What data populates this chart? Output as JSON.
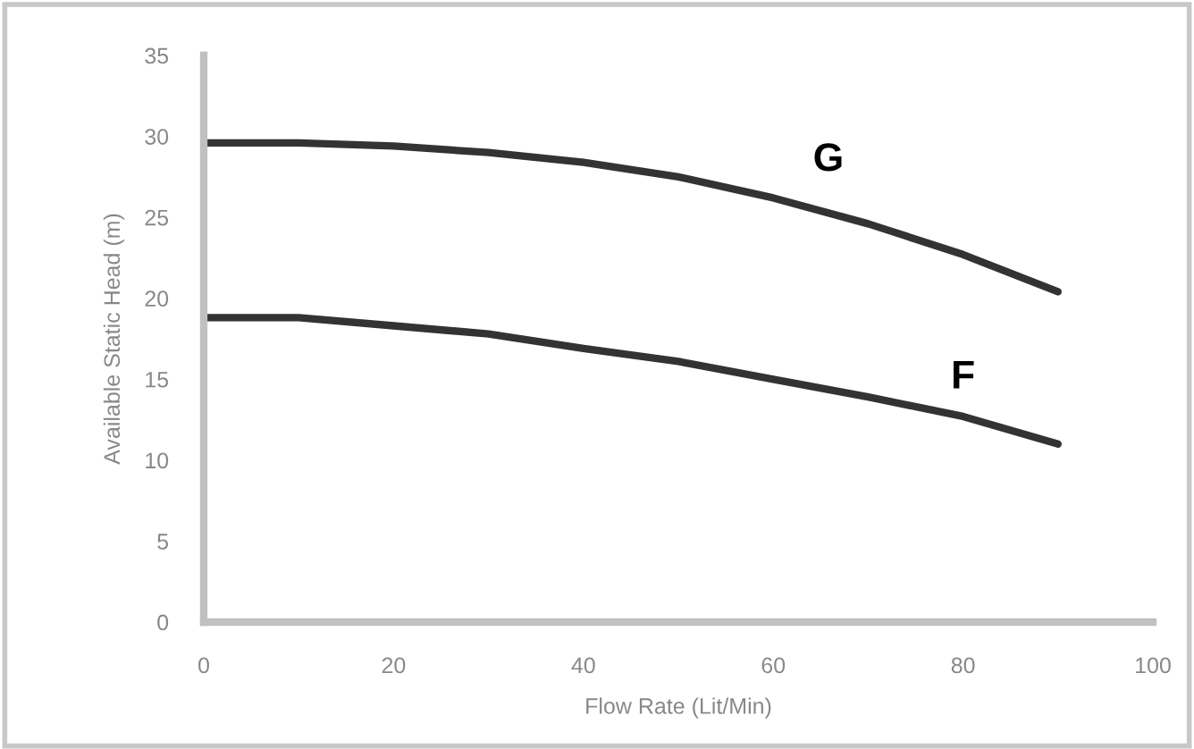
{
  "chart_data": {
    "type": "line",
    "xlabel": "Flow Rate (Lit/Min)",
    "ylabel": "Available Static Head (m)",
    "x": [
      0,
      10,
      20,
      30,
      40,
      50,
      60,
      70,
      80,
      90
    ],
    "series": [
      {
        "name": "G",
        "color": "#333333",
        "values": [
          29.6,
          29.6,
          29.4,
          29.0,
          28.4,
          27.5,
          26.2,
          24.6,
          22.7,
          20.4
        ]
      },
      {
        "name": "F",
        "color": "#333333",
        "values": [
          18.8,
          18.8,
          18.3,
          17.8,
          16.9,
          16.1,
          15.0,
          13.9,
          12.7,
          11.0
        ]
      }
    ],
    "xlim": [
      0,
      100
    ],
    "xticks": [
      0,
      20,
      40,
      60,
      80,
      100
    ],
    "ylim": [
      0,
      35
    ],
    "yticks": [
      0,
      5,
      10,
      15,
      20,
      25,
      30,
      35
    ],
    "grid": false,
    "legend": false,
    "marker": "none",
    "line_style": "solid"
  }
}
